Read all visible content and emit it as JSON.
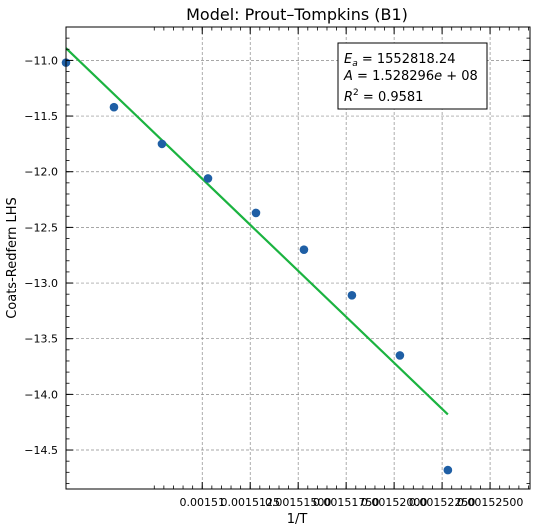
{
  "chart_data": {
    "type": "scatter",
    "title": "Model: Prout–Tompkins (B1)",
    "xlabel": "1/T",
    "ylabel": "Coats-Redfern LHS",
    "xlim": [
      0.0015029,
      0.00152708
    ],
    "ylim": [
      -14.85,
      -10.7
    ],
    "x_ticks": [
      0.00151,
      0.0015125,
      0.001515,
      0.0015175,
      0.00152,
      0.0015225,
      0.001525
    ],
    "x_tick_labels": [
      "0.00151",
      "0.0015125",
      "0.00151500",
      "0.00151750",
      "0.00152000",
      "0.00152250",
      "0.00152500"
    ],
    "y_ticks": [
      -14.5,
      -14.0,
      -13.5,
      -13.0,
      -12.5,
      -12.0,
      -11.5,
      -11.0
    ],
    "y_tick_labels": [
      "−14.5",
      "−14.0",
      "−13.5",
      "−13.0",
      "−12.5",
      "−12.0",
      "−11.5",
      "−11.0"
    ],
    "grid": true,
    "series": [
      {
        "kind": "scatter",
        "color": "#1f5fa5",
        "points": [
          {
            "x": 0.0015029,
            "y": -11.02
          },
          {
            "x": 0.0015054,
            "y": -11.42
          },
          {
            "x": 0.0015079,
            "y": -11.75
          },
          {
            "x": 0.0015103,
            "y": -12.06
          },
          {
            "x": 0.0015128,
            "y": -12.37
          },
          {
            "x": 0.0015153,
            "y": -12.7
          },
          {
            "x": 0.0015178,
            "y": -13.11
          },
          {
            "x": 0.0015203,
            "y": -13.65
          },
          {
            "x": 0.0015228,
            "y": -14.68
          }
        ]
      },
      {
        "kind": "line",
        "color": "#1bb340",
        "points": [
          {
            "x": 0.0015029,
            "y": -10.89
          },
          {
            "x": 0.0015228,
            "y": -14.18
          }
        ]
      }
    ],
    "annotation": {
      "ea_label": "E",
      "ea_sub": "a",
      "ea_value": " = 1552818.24",
      "a_label": "A",
      "a_value": " = 1.528296",
      "a_exp_label": "e",
      "a_exp_value": " + 08",
      "r2_label": "R",
      "r2_sup": "2",
      "r2_value": " = 0.9581"
    }
  }
}
